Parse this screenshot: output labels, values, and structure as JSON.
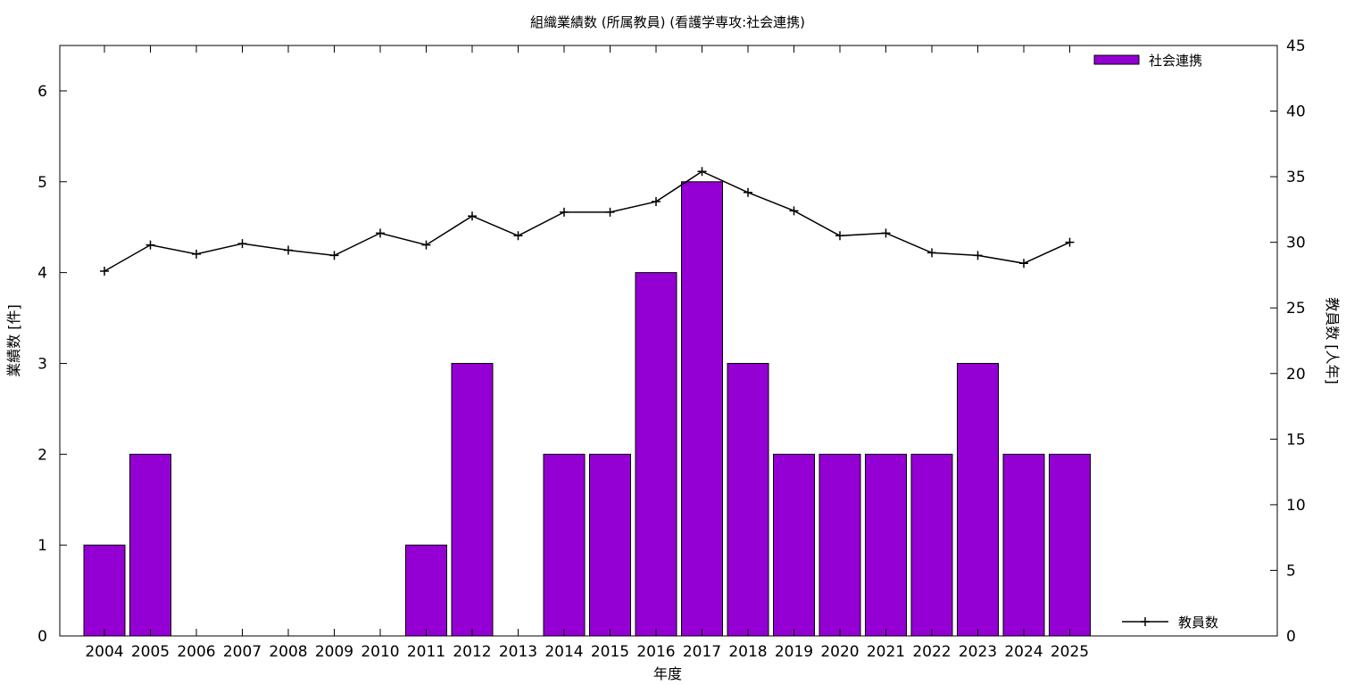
{
  "chart_data": {
    "type": "bar",
    "title": "組織業績数 (所属教員) (看護学専攻:社会連携)",
    "xlabel": "年度",
    "ylabel_left": "業績数 [件]",
    "ylabel_right": "教員数 [人年]",
    "categories": [
      "2004",
      "2005",
      "2006",
      "2007",
      "2008",
      "2009",
      "2010",
      "2011",
      "2012",
      "2013",
      "2014",
      "2015",
      "2016",
      "2017",
      "2018",
      "2019",
      "2020",
      "2021",
      "2022",
      "2023",
      "2024",
      "2025"
    ],
    "bar_series": {
      "name": "社会連携",
      "color": "#9400d3",
      "values": [
        1,
        2,
        0,
        0,
        0,
        0,
        0,
        1,
        3,
        0,
        2,
        2,
        4,
        5,
        3,
        2,
        2,
        2,
        2,
        3,
        2,
        2
      ]
    },
    "line_series": {
      "name": "教員数",
      "color": "#000000",
      "values": [
        27.8,
        29.8,
        29.1,
        29.9,
        29.4,
        29.0,
        30.7,
        29.8,
        32.0,
        30.5,
        32.3,
        32.3,
        33.1,
        35.4,
        33.8,
        32.4,
        30.5,
        30.7,
        29.2,
        29.0,
        28.4,
        30.0
      ]
    },
    "y_left": {
      "min": 0,
      "max": 6.5,
      "ticks": [
        0,
        1,
        2,
        3,
        4,
        5,
        6
      ]
    },
    "y_right": {
      "min": 0,
      "max": 45,
      "ticks": [
        0,
        5,
        10,
        15,
        20,
        25,
        30,
        35,
        40,
        45
      ]
    },
    "legend": {
      "bar_position": "top-right",
      "line_position": "bottom-right"
    },
    "grid": false
  }
}
